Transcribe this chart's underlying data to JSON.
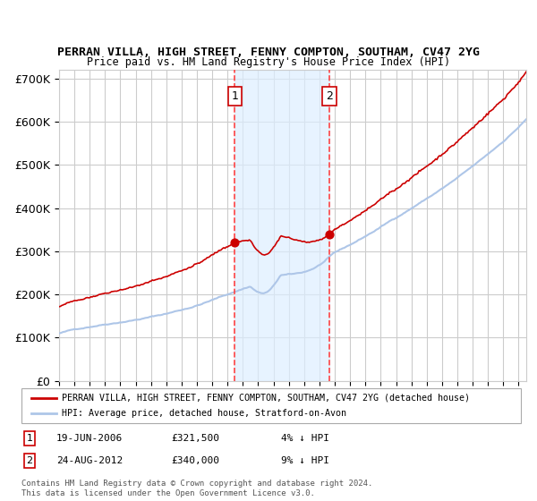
{
  "title": "PERRAN VILLA, HIGH STREET, FENNY COMPTON, SOUTHAM, CV47 2YG",
  "subtitle": "Price paid vs. HM Land Registry's House Price Index (HPI)",
  "background_color": "#ffffff",
  "plot_bg_color": "#ffffff",
  "grid_color": "#cccccc",
  "ylim": [
    0,
    720000
  ],
  "yticks": [
    0,
    100000,
    200000,
    300000,
    400000,
    500000,
    600000,
    700000
  ],
  "ytick_labels": [
    "£0",
    "£100K",
    "£200K",
    "£300K",
    "£400K",
    "£500K",
    "£600K",
    "£700K"
  ],
  "sale1_date": "19-JUN-2006",
  "sale1_price": 321500,
  "sale1_x": 2006.47,
  "sale2_date": "24-AUG-2012",
  "sale2_price": 340000,
  "sale2_x": 2012.64,
  "hpi_color": "#aec6e8",
  "price_color": "#cc0000",
  "sale_dot_color": "#cc0000",
  "vline_color": "#ff4444",
  "shade_color": "#ddeeff",
  "legend_line1": "PERRAN VILLA, HIGH STREET, FENNY COMPTON, SOUTHAM, CV47 2YG (detached house)",
  "legend_line2": "HPI: Average price, detached house, Stratford-on-Avon",
  "footer": "Contains HM Land Registry data © Crown copyright and database right 2024.\nThis data is licensed under the Open Government Licence v3.0.",
  "xmin": 1995,
  "xmax": 2025.5
}
